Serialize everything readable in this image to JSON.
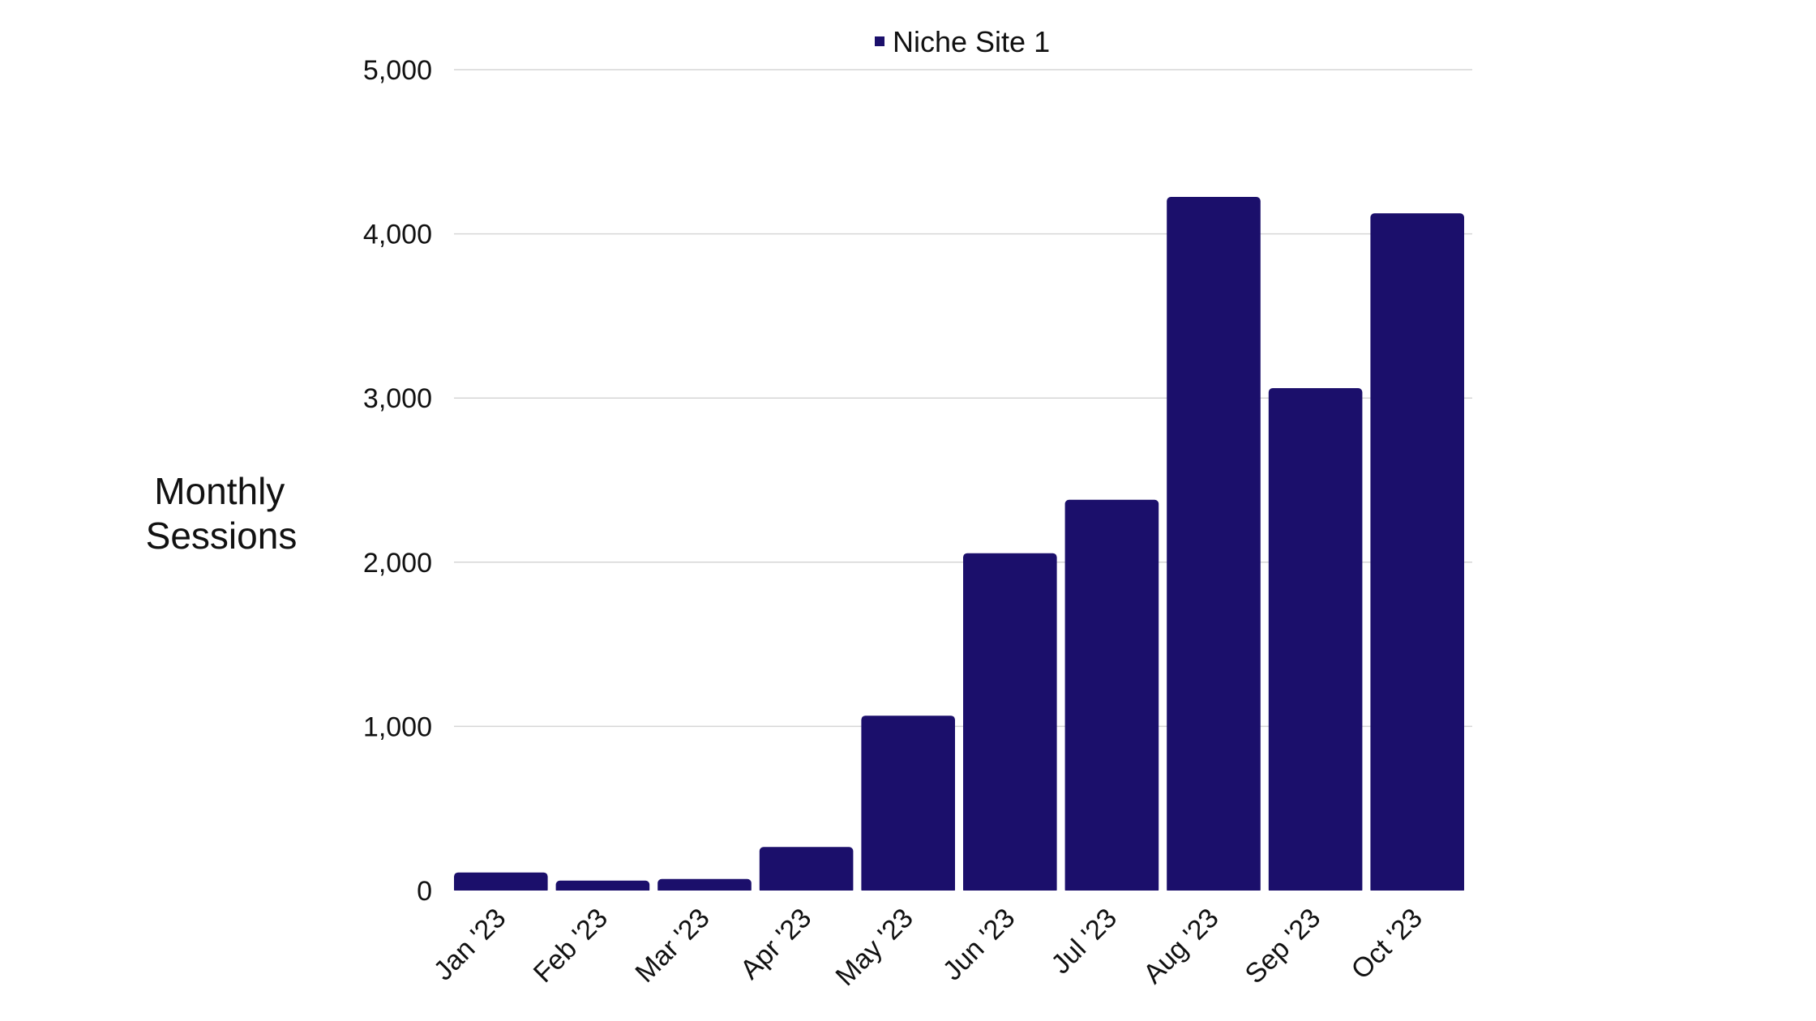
{
  "chart_data": {
    "type": "bar",
    "ylabel_lines": [
      "Monthly",
      "Sessions"
    ],
    "xlabel": "",
    "categories": [
      "Jan '23",
      "Feb '23",
      "Mar '23",
      "Apr '23",
      "May '23",
      "Jun '23",
      "Jul '23",
      "Aug '23",
      "Sep '23",
      "Oct '23"
    ],
    "series": [
      {
        "name": "Niche Site 1",
        "color": "#1b0f6b",
        "values": [
          110,
          60,
          70,
          265,
          1065,
          2055,
          2380,
          4225,
          3060,
          4125
        ]
      }
    ],
    "ylim": [
      0,
      5000
    ],
    "yticks": [
      0,
      1000,
      2000,
      3000,
      4000,
      5000
    ],
    "ytick_labels": [
      "0",
      "1,000",
      "2,000",
      "3,000",
      "4,000",
      "5,000"
    ],
    "grid": true,
    "legend_position": "top-center"
  }
}
